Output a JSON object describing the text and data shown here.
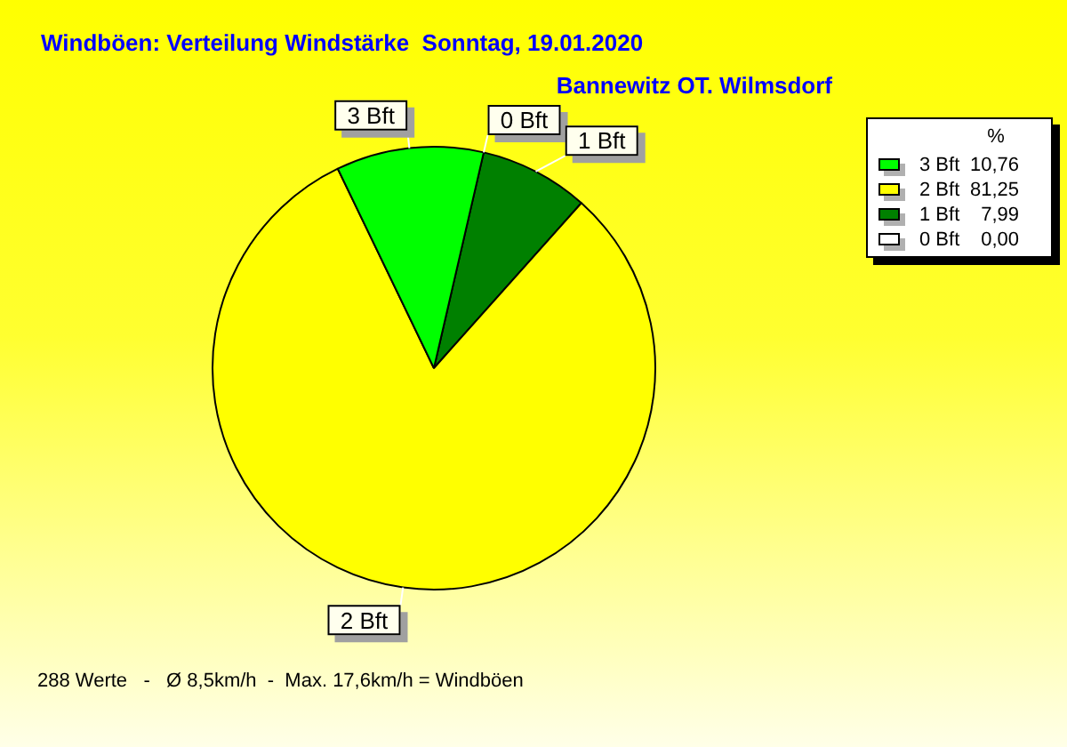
{
  "chart_data": {
    "type": "pie",
    "title": "Windböen: Verteilung Windstärke  Sonntag, 19.01.2020",
    "subtitle": "Bannewitz OT. Wilmsdorf",
    "categories": [
      "3 Bft",
      "2 Bft",
      "1 Bft",
      "0 Bft"
    ],
    "values": [
      10.76,
      81.25,
      7.99,
      0.0
    ],
    "value_labels": [
      "10,76",
      "81,25",
      "7,99",
      "0,00"
    ],
    "colors": [
      "#00ff00",
      "#ffff00",
      "#008000",
      "#ffffff"
    ],
    "legend": "top right",
    "legend_title": "%",
    "annotations": [
      "288 Werte   -   Ø 8,5km/h  -  Max. 17,6km/h = Windböen"
    ]
  }
}
